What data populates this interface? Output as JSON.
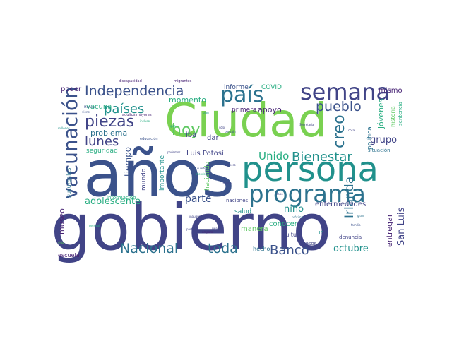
{
  "palette": {
    "dark_purple": "#482475",
    "indigo": "#3b528b",
    "navy": "#414487",
    "teal": "#21918c",
    "blue_teal": "#2c728e",
    "green": "#5ec962",
    "lime": "#7ad151",
    "sea_green": "#27ad81",
    "yellow": "#fde725",
    "aqua": "#35b779"
  },
  "words": {
    "ciudad": "Ciudad",
    "anos": "años",
    "gobierno": "gobierno",
    "persona": "persona",
    "programa": "programa",
    "vacunacion": "vacunación",
    "independencia": "Independencia",
    "pais": "país",
    "semana": "semana",
    "hoy": "hoy",
    "piezas": "piezas",
    "paises": "países",
    "lunes": "lunes",
    "pueblo": "pueblo",
    "creo": "creo",
    "unido": "Unido",
    "bienestar": "Bienestar",
    "irlanda": "Irlanda",
    "nacional": "Nacional",
    "toda": "toda",
    "banco": "Banco",
    "octubre": "octubre",
    "adolescente": "adolescente",
    "parte": "parte",
    "museo": "museo",
    "nino": "niño",
    "luis_potosi": "Luis Potosí",
    "grupo": "grupo",
    "san_luis": "San Luis",
    "entregar": "entregar",
    "jovenes": "jóvenes",
    "politica": "política",
    "enfermedades": "enfermedades",
    "mismo": "mismo",
    "poder": "poder",
    "momento": "momento",
    "vacuna": "vacuna",
    "problema": "problema",
    "apoyo": "apoyo",
    "primera": "primera",
    "informe": "informe",
    "covid": "COVID",
    "iba": "iba",
    "dar": "dar",
    "tiempo": "tiempo",
    "seguridad": "seguridad",
    "mundo": "mundo",
    "importante": "importante",
    "haciendo": "haciendo",
    "salud": "salud",
    "conocer": "conocer",
    "naciones": "naciones",
    "manera": "manera",
    "cultura": "cultura",
    "ir": "ir",
    "pesos": "pesos",
    "denuncia": "denuncia",
    "hecho": "hecho",
    "escuela": "escuela",
    "informacion": "información",
    "situacion": "situación",
    "sucursales": "sucursales",
    "historia": "historia",
    "sentencia": "sentencia",
    "educacion": "educación",
    "discapacidad": "discapacidad",
    "migrantes": "migrantes",
    "adultos_mayores": "adultos mayores",
    "morelos": "Morelos",
    "viene": "viene",
    "millones": "millones",
    "secretaria": "Secretaría",
    "incluso": "incluso",
    "podemos": "podemos",
    "general": "general",
    "cosa": "cosa",
    "gira": "gira",
    "sido": "sido",
    "caso": "caso",
    "pension": "pensión",
    "plan": "plan",
    "gran": "gran",
    "familia": "familia",
    "proximo": "próximo",
    "nuevo": "nuevo",
    "cabo": "cabo",
    "recurso": "recurso",
    "primero": "primero",
    "cuarto": "cuarto",
    "atender": "atender",
    "riesgo": "riesgo",
    "partir": "partir",
    "inaugurar": "inaugurar",
    "amparo": "amparo",
    "vida": "vida",
    "estado": "estado",
    "dia": "día",
    "gente": "gente",
    "tierra": "tierra",
    "solo": "sólo",
    "fondo": "fondo",
    "obras": "obras",
    "centro": "centro"
  }
}
